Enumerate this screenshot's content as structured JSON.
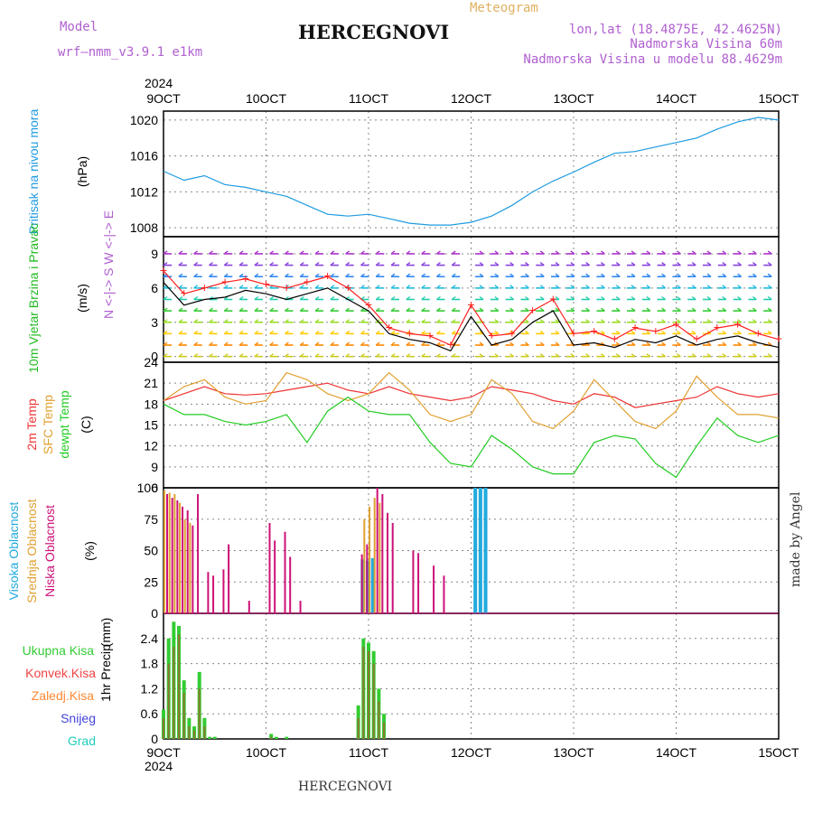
{
  "header": {
    "model_label": "Model",
    "model_name": "wrf—nmm_v3.9.1 e1km",
    "title": "HERCEGNOVI",
    "meteogram": "Meteogram",
    "lonlat": "lon,lat (18.4875E, 42.4625N)",
    "altitude": "Nadmorska Visina 60m",
    "model_altitude": "Nadmorska Visina u modelu 88.4629m",
    "year": "2024"
  },
  "footer": {
    "station": "HERCEGNOVI",
    "credit": "made by Angel"
  },
  "axis": {
    "x_ticks": [
      "9OCT",
      "10OCT",
      "11OCT",
      "12OCT",
      "13OCT",
      "14OCT",
      "15OCT"
    ],
    "year": "2024"
  },
  "colors": {
    "pressure": "#1e9be0",
    "wind_speed": "#000000",
    "gust": "#ff2020",
    "temp2m": "#ee3333",
    "sfc": "#e0a030",
    "dewpt": "#22cc22",
    "high_cloud": "#22aadd",
    "mid_cloud": "#e0a030",
    "low_cloud": "#cc1177",
    "total_precip": "#33cc33",
    "conv_precip": "#ee4444",
    "frozen": "#ff8833",
    "snow": "#4444dd",
    "hail": "#22ccbb"
  },
  "chart_data": [
    {
      "type": "line",
      "panel": "pressure",
      "ylabel": "Pritisak na nivou mora",
      "unit": "(hPa)",
      "ylim": [
        1007,
        1021
      ],
      "y_ticks": [
        1008,
        1012,
        1016,
        1020
      ],
      "grid": true,
      "x": [
        0,
        0.2,
        0.4,
        0.6,
        0.8,
        1.0,
        1.2,
        1.4,
        1.6,
        1.8,
        2.0,
        2.2,
        2.4,
        2.6,
        2.8,
        3.0,
        3.2,
        3.4,
        3.6,
        3.8,
        4.0,
        4.2,
        4.4,
        4.6,
        4.8,
        5.0,
        5.2,
        5.4,
        5.6,
        5.8,
        6.0
      ],
      "series": [
        {
          "values": [
            1014.3,
            1013.3,
            1013.8,
            1012.8,
            1012.5,
            1012.0,
            1011.5,
            1010.5,
            1009.5,
            1009.3,
            1009.5,
            1009.0,
            1008.5,
            1008.3,
            1008.3,
            1008.6,
            1009.3,
            1010.5,
            1012.0,
            1013.2,
            1014.2,
            1015.3,
            1016.3,
            1016.5,
            1017.0,
            1017.5,
            1018.0,
            1019.0,
            1019.8,
            1020.3,
            1020.0
          ]
        }
      ]
    },
    {
      "type": "line",
      "panel": "wind",
      "ylabel": "10m Vjetar Brzina i Pravac",
      "unit": "(m/s)",
      "direction_legend": "N <-|-> S  W <-|-> E",
      "ylim": [
        -0.5,
        10.5
      ],
      "y_ticks": [
        0,
        3,
        6,
        9
      ],
      "grid": true,
      "x": [
        0,
        0.2,
        0.4,
        0.6,
        0.8,
        1.0,
        1.2,
        1.4,
        1.6,
        1.8,
        2.0,
        2.2,
        2.4,
        2.6,
        2.8,
        3.0,
        3.2,
        3.4,
        3.6,
        3.8,
        4.0,
        4.2,
        4.4,
        4.6,
        4.8,
        5.0,
        5.2,
        5.4,
        5.6,
        5.8,
        6.0
      ],
      "series": [
        {
          "name": "speed",
          "values": [
            6.5,
            4.5,
            5.0,
            5.2,
            5.8,
            5.5,
            5.0,
            5.5,
            6.0,
            5.0,
            4.0,
            2.0,
            1.5,
            1.2,
            0.5,
            3.5,
            1.0,
            1.5,
            3.0,
            4.0,
            1.0,
            1.2,
            0.8,
            1.5,
            1.2,
            1.8,
            1.0,
            1.5,
            1.8,
            1.2,
            0.8
          ]
        },
        {
          "name": "gust",
          "values": [
            7.5,
            5.5,
            6.0,
            6.5,
            6.8,
            6.3,
            6.0,
            6.5,
            7.0,
            6.0,
            4.5,
            2.5,
            2.0,
            1.8,
            1.0,
            4.5,
            1.8,
            2.0,
            4.0,
            5.0,
            2.0,
            2.2,
            1.5,
            2.5,
            2.2,
            2.8,
            1.5,
            2.5,
            2.8,
            2.0,
            1.5
          ]
        }
      ]
    },
    {
      "type": "line",
      "panel": "temperature",
      "ylabels": [
        "2m Temp",
        "SFC Temp",
        "dewpt Temp"
      ],
      "unit": "(C)",
      "ylim": [
        6,
        24
      ],
      "y_ticks": [
        6,
        9,
        12,
        15,
        18,
        21,
        24
      ],
      "grid": true,
      "x": [
        0,
        0.2,
        0.4,
        0.6,
        0.8,
        1.0,
        1.2,
        1.4,
        1.6,
        1.8,
        2.0,
        2.2,
        2.4,
        2.6,
        2.8,
        3.0,
        3.2,
        3.4,
        3.6,
        3.8,
        4.0,
        4.2,
        4.4,
        4.6,
        4.8,
        5.0,
        5.2,
        5.4,
        5.6,
        5.8,
        6.0
      ],
      "series": [
        {
          "name": "2m Temp",
          "values": [
            18.5,
            19.5,
            20.5,
            19.5,
            19.3,
            19.5,
            20.0,
            20.5,
            21.0,
            20.0,
            19.5,
            20.5,
            19.5,
            19.0,
            18.5,
            19.0,
            20.5,
            20.0,
            19.5,
            18.5,
            18.0,
            19.5,
            19.0,
            17.5,
            18.0,
            18.5,
            19.0,
            20.5,
            19.5,
            19.0,
            19.5
          ]
        },
        {
          "name": "SFC Temp",
          "values": [
            18.5,
            20.5,
            21.5,
            19.0,
            18.0,
            18.5,
            22.5,
            21.5,
            19.5,
            18.5,
            19.5,
            22.5,
            20.0,
            16.5,
            15.5,
            16.5,
            21.5,
            19.5,
            15.5,
            14.5,
            17.0,
            21.5,
            18.5,
            15.5,
            14.5,
            17.0,
            22.0,
            19.0,
            16.5,
            16.5,
            16.0
          ]
        },
        {
          "name": "dewpt Temp",
          "values": [
            18.0,
            16.5,
            16.5,
            15.5,
            15.0,
            15.5,
            16.5,
            12.5,
            17.0,
            19.0,
            17.0,
            16.5,
            16.5,
            12.5,
            9.5,
            9.0,
            13.5,
            11.5,
            9.0,
            8.0,
            8.0,
            12.5,
            13.5,
            13.0,
            9.5,
            7.5,
            12.0,
            16.0,
            13.5,
            12.5,
            13.5
          ]
        }
      ]
    },
    {
      "type": "bar",
      "panel": "cloud",
      "ylabels": [
        "Visoka Oblacnost",
        "Srednja Oblacnost",
        "Niska Oblacnost"
      ],
      "unit": "(%)",
      "ylim": [
        0,
        100
      ],
      "y_ticks": [
        0,
        25,
        50,
        75,
        100
      ],
      "grid": true,
      "x": [
        0.0,
        0.05,
        0.1,
        0.15,
        0.2,
        0.25,
        0.3,
        0.35,
        0.4,
        0.45,
        0.5,
        0.55,
        0.6,
        0.7,
        0.8,
        0.9,
        1.0,
        1.05,
        1.1,
        1.15,
        1.2,
        1.3,
        1.4,
        1.9,
        1.95,
        2.0,
        2.05,
        2.1,
        2.15,
        2.2,
        2.25,
        2.3,
        2.4,
        2.45,
        2.5,
        2.6,
        2.7,
        3.05,
        3.1,
        3.15
      ],
      "series": [
        {
          "name": "Visoka Oblacnost",
          "values": [
            0,
            0,
            0,
            0,
            0,
            0,
            0,
            0,
            0,
            0,
            0,
            0,
            0,
            0,
            0,
            0,
            0,
            0,
            0,
            0,
            0,
            0,
            0,
            0,
            43,
            42,
            44,
            0,
            0,
            0,
            0,
            0,
            0,
            0,
            0,
            0,
            0,
            100,
            100,
            100
          ]
        },
        {
          "name": "Srednja Oblacnost",
          "values": [
            98,
            96,
            95,
            88,
            75,
            72,
            0,
            0,
            0,
            0,
            0,
            0,
            0,
            0,
            0,
            0,
            0,
            0,
            0,
            0,
            0,
            0,
            0,
            0,
            75,
            85,
            92,
            88,
            0,
            0,
            0,
            0,
            0,
            0,
            0,
            0,
            0,
            0,
            0,
            0
          ]
        },
        {
          "name": "Niska Oblacnost",
          "values": [
            95,
            92,
            90,
            85,
            82,
            70,
            95,
            0,
            33,
            30,
            0,
            35,
            55,
            0,
            10,
            0,
            72,
            58,
            0,
            65,
            45,
            10,
            0,
            47,
            55,
            0,
            100,
            95,
            80,
            72,
            0,
            0,
            50,
            48,
            0,
            38,
            30,
            0,
            0,
            0
          ]
        }
      ]
    },
    {
      "type": "bar",
      "panel": "precip",
      "ylabel": "1hr Precip",
      "unit": "(mm)",
      "legend": [
        "Ukupna Kisa",
        "Konvek.Kisa",
        "Zaledj.Kisa",
        "Snijeg",
        "Grad"
      ],
      "ylim": [
        0,
        3.0
      ],
      "y_ticks": [
        0,
        0.6,
        1.2,
        1.8,
        2.4
      ],
      "grid": true,
      "x": [
        0.0,
        0.05,
        0.1,
        0.15,
        0.2,
        0.25,
        0.3,
        0.35,
        0.4,
        0.45,
        0.5,
        1.05,
        1.1,
        1.2,
        1.9,
        1.95,
        2.0,
        2.05,
        2.1,
        2.15
      ],
      "series": [
        {
          "name": "Ukupna Kisa",
          "values": [
            0.7,
            2.4,
            2.8,
            2.7,
            1.4,
            0.5,
            0.3,
            1.6,
            0.5,
            0.05,
            0.05,
            0.12,
            0.05,
            0.05,
            0.8,
            2.4,
            2.3,
            2.1,
            1.2,
            0.6
          ]
        },
        {
          "name": "Konvek.Kisa",
          "values": [
            0.5,
            1.8,
            2.2,
            2.5,
            1.1,
            0.3,
            0.2,
            1.2,
            0.3,
            0,
            0,
            0.05,
            0,
            0,
            0.5,
            2.2,
            2.1,
            1.8,
            0.9,
            0.4
          ]
        }
      ]
    }
  ]
}
